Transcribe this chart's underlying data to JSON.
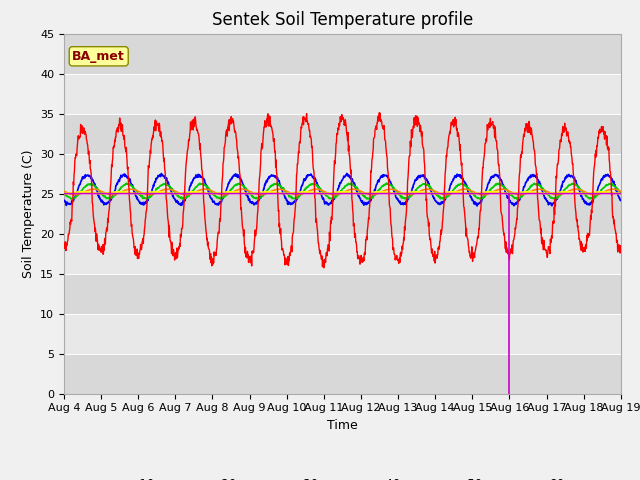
{
  "title": "Sentek Soil Temperature profile",
  "xlabel": "Time",
  "ylabel": "Soil Temperature (C)",
  "ylim": [
    0,
    45
  ],
  "yticks": [
    0,
    5,
    10,
    15,
    20,
    25,
    30,
    35,
    40,
    45
  ],
  "colors": {
    "-10cm": "#ff0000",
    "-20cm": "#0000ff",
    "-30cm": "#00cc00",
    "-40cm": "#ff8800",
    "-50cm": "#ffff00",
    "-60cm": "#cc00cc"
  },
  "ba_met_label": "BA_met",
  "ba_met_bg": "#ffff99",
  "ba_met_fg": "#880000",
  "fig_bg": "#f0f0f0",
  "band_light": "#e8e8e8",
  "band_dark": "#d8d8d8",
  "start_day": 4,
  "end_day": 19,
  "n_points": 1440,
  "title_fontsize": 12,
  "label_fontsize": 9,
  "tick_fontsize": 8
}
